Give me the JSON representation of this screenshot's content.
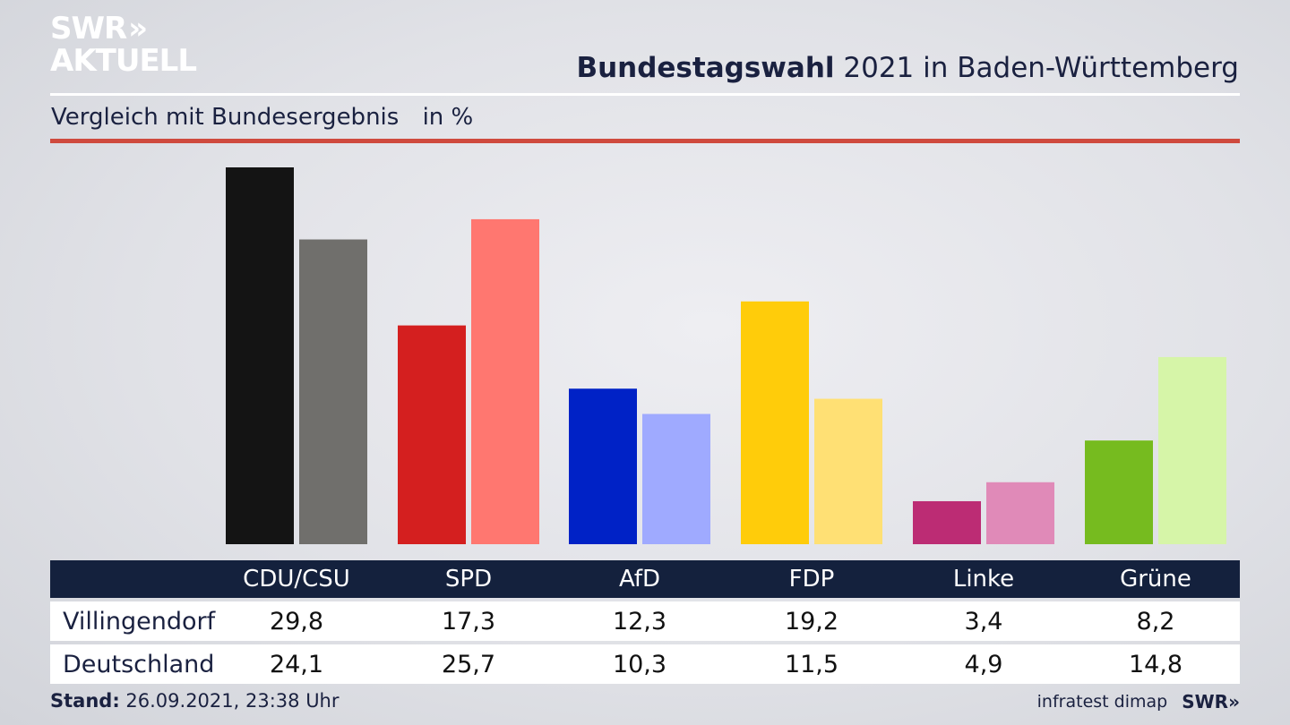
{
  "logo": {
    "line1": "SWR",
    "line1_chevrons": "»",
    "line2": "AKTUELL"
  },
  "header": {
    "title_bold": "Bundestagswahl",
    "title_rest": "2021 in Baden-Württemberg",
    "subtitle": "Vergleich mit Bundesergebnis",
    "unit": "in %"
  },
  "colors": {
    "accent_rule": "#cf4a3e",
    "table_header_bg": "#14213d"
  },
  "chart_data": {
    "type": "bar",
    "title": "",
    "categories": [
      "CDU/CSU",
      "SPD",
      "AfD",
      "FDP",
      "Linke",
      "Grüne"
    ],
    "series": [
      {
        "name": "Villingendorf",
        "values": [
          29.8,
          17.3,
          12.3,
          19.2,
          3.4,
          8.2
        ],
        "colors": [
          "#141414",
          "#d41f1f",
          "#0022c6",
          "#ffcc0a",
          "#bc2c74",
          "#76bb1f"
        ]
      },
      {
        "name": "Deutschland",
        "values": [
          24.1,
          25.7,
          10.3,
          11.5,
          4.9,
          14.8
        ],
        "colors": [
          "#706f6c",
          "#ff7770",
          "#9faaff",
          "#ffe074",
          "#e08ab8",
          "#d6f5a8"
        ]
      }
    ],
    "ylim": [
      0,
      29.8
    ],
    "grid": false,
    "legend": "table-below"
  },
  "table": {
    "columns": [
      "CDU/CSU",
      "SPD",
      "AfD",
      "FDP",
      "Linke",
      "Grüne"
    ],
    "rows": [
      {
        "label": "Villingendorf",
        "values": [
          "29,8",
          "17,3",
          "12,3",
          "19,2",
          "3,4",
          "8,2"
        ]
      },
      {
        "label": "Deutschland",
        "values": [
          "24,1",
          "25,7",
          "10,3",
          "11,5",
          "4,9",
          "14,8"
        ]
      }
    ]
  },
  "footer": {
    "stand_label": "Stand:",
    "stand_value": "26.09.2021, 23:38 Uhr",
    "source": "infratest dimap",
    "brand": "SWR",
    "brand_chevrons": "»"
  }
}
